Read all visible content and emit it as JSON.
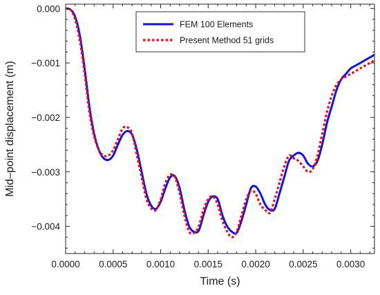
{
  "chart_data": {
    "type": "line",
    "title": "",
    "xlabel": "Time (s)",
    "ylabel": "Mid–point displacement (m)",
    "xlim": [
      0.0,
      0.00325
    ],
    "ylim": [
      -0.0045,
      8e-05
    ],
    "grid": false,
    "legend_position": "top-center",
    "x_ticks": [
      0.0,
      0.0005,
      0.001,
      0.0015,
      0.002,
      0.0025,
      0.003
    ],
    "x_tick_labels": [
      "0.0000",
      "0.0005",
      "0.0010",
      "0.0015",
      "0.0020",
      "0.0025",
      "0.0030"
    ],
    "y_ticks": [
      0.0,
      -0.001,
      -0.002,
      -0.003,
      -0.004
    ],
    "y_tick_labels": [
      "0.000",
      "−0.001",
      "−0.002",
      "−0.003",
      "−0.004"
    ],
    "series": [
      {
        "name": "FEM 100 Elements",
        "color": "#1010ee",
        "style": "solid",
        "points": [
          [
            0.0,
            0.0
          ],
          [
            5e-05,
            -2e-05
          ],
          [
            0.0001,
            -0.00015
          ],
          [
            0.00015,
            -0.0005
          ],
          [
            0.0002,
            -0.0011
          ],
          [
            0.00025,
            -0.0018
          ],
          [
            0.0003,
            -0.0023
          ],
          [
            0.00035,
            -0.0026
          ],
          [
            0.0004,
            -0.00275
          ],
          [
            0.00045,
            -0.00278
          ],
          [
            0.0005,
            -0.0027
          ],
          [
            0.00055,
            -0.0025
          ],
          [
            0.0006,
            -0.00232
          ],
          [
            0.00065,
            -0.00225
          ],
          [
            0.0007,
            -0.00232
          ],
          [
            0.00075,
            -0.0026
          ],
          [
            0.0008,
            -0.003
          ],
          [
            0.00085,
            -0.0034
          ],
          [
            0.0009,
            -0.00362
          ],
          [
            0.00095,
            -0.00368
          ],
          [
            0.001,
            -0.00355
          ],
          [
            0.00105,
            -0.0033
          ],
          [
            0.0011,
            -0.0031
          ],
          [
            0.00115,
            -0.00308
          ],
          [
            0.0012,
            -0.0033
          ],
          [
            0.00125,
            -0.0037
          ],
          [
            0.0013,
            -0.004
          ],
          [
            0.00135,
            -0.0041
          ],
          [
            0.0014,
            -0.00408
          ],
          [
            0.00145,
            -0.0038
          ],
          [
            0.0015,
            -0.00355
          ],
          [
            0.00155,
            -0.00345
          ],
          [
            0.0016,
            -0.0035
          ],
          [
            0.00165,
            -0.0038
          ],
          [
            0.0017,
            -0.004
          ],
          [
            0.00175,
            -0.0041
          ],
          [
            0.0018,
            -0.00412
          ],
          [
            0.00185,
            -0.0039
          ],
          [
            0.0019,
            -0.0036
          ],
          [
            0.00195,
            -0.0033
          ],
          [
            0.002,
            -0.00327
          ],
          [
            0.00205,
            -0.0034
          ],
          [
            0.0021,
            -0.0036
          ],
          [
            0.00215,
            -0.0037
          ],
          [
            0.0022,
            -0.00368
          ],
          [
            0.00225,
            -0.0034
          ],
          [
            0.0023,
            -0.0031
          ],
          [
            0.00235,
            -0.0028
          ],
          [
            0.0024,
            -0.0027
          ],
          [
            0.00245,
            -0.00265
          ],
          [
            0.0025,
            -0.0027
          ],
          [
            0.00255,
            -0.00285
          ],
          [
            0.0026,
            -0.0029
          ],
          [
            0.00265,
            -0.0028
          ],
          [
            0.0027,
            -0.0025
          ],
          [
            0.00275,
            -0.0021
          ],
          [
            0.0028,
            -0.0018
          ],
          [
            0.00285,
            -0.0015
          ],
          [
            0.0029,
            -0.0013
          ],
          [
            0.00295,
            -0.0012
          ],
          [
            0.003,
            -0.0011
          ],
          [
            0.00305,
            -0.00105
          ],
          [
            0.0031,
            -0.001
          ],
          [
            0.00315,
            -0.00095
          ],
          [
            0.0032,
            -0.0009
          ],
          [
            0.00325,
            -0.00085
          ]
        ]
      },
      {
        "name": "Present Method 51 grids",
        "color": "#ee1010",
        "style": "dotted",
        "points": [
          [
            0.0,
            0.0
          ],
          [
            5e-05,
            -2e-05
          ],
          [
            0.0001,
            -0.0002
          ],
          [
            0.00015,
            -0.0006
          ],
          [
            0.0002,
            -0.0012
          ],
          [
            0.00025,
            -0.0019
          ],
          [
            0.0003,
            -0.00235
          ],
          [
            0.00035,
            -0.0026
          ],
          [
            0.0004,
            -0.0027
          ],
          [
            0.00045,
            -0.0027
          ],
          [
            0.0005,
            -0.0026
          ],
          [
            0.00055,
            -0.0024
          ],
          [
            0.0006,
            -0.0022
          ],
          [
            0.00065,
            -0.00218
          ],
          [
            0.0007,
            -0.0023
          ],
          [
            0.00075,
            -0.0027
          ],
          [
            0.0008,
            -0.0031
          ],
          [
            0.00085,
            -0.0035
          ],
          [
            0.0009,
            -0.00367
          ],
          [
            0.00095,
            -0.0037
          ],
          [
            0.001,
            -0.0035
          ],
          [
            0.00105,
            -0.0032
          ],
          [
            0.0011,
            -0.00305
          ],
          [
            0.00115,
            -0.0031
          ],
          [
            0.0012,
            -0.0034
          ],
          [
            0.00125,
            -0.0038
          ],
          [
            0.0013,
            -0.0041
          ],
          [
            0.00135,
            -0.00412
          ],
          [
            0.0014,
            -0.004
          ],
          [
            0.00145,
            -0.0037
          ],
          [
            0.0015,
            -0.0035
          ],
          [
            0.00155,
            -0.00345
          ],
          [
            0.0016,
            -0.0036
          ],
          [
            0.00165,
            -0.0039
          ],
          [
            0.0017,
            -0.0041
          ],
          [
            0.00175,
            -0.0042
          ],
          [
            0.0018,
            -0.0041
          ],
          [
            0.00185,
            -0.0038
          ],
          [
            0.0019,
            -0.0035
          ],
          [
            0.00195,
            -0.00335
          ],
          [
            0.002,
            -0.0034
          ],
          [
            0.00205,
            -0.0036
          ],
          [
            0.0021,
            -0.0037
          ],
          [
            0.00215,
            -0.00375
          ],
          [
            0.0022,
            -0.0035
          ],
          [
            0.00225,
            -0.0032
          ],
          [
            0.0023,
            -0.0029
          ],
          [
            0.00235,
            -0.0027
          ],
          [
            0.0024,
            -0.00275
          ],
          [
            0.00245,
            -0.0028
          ],
          [
            0.0025,
            -0.0029
          ],
          [
            0.00255,
            -0.003
          ],
          [
            0.0026,
            -0.00295
          ],
          [
            0.00265,
            -0.0027
          ],
          [
            0.0027,
            -0.0023
          ],
          [
            0.00275,
            -0.0019
          ],
          [
            0.0028,
            -0.0016
          ],
          [
            0.00285,
            -0.0014
          ],
          [
            0.0029,
            -0.0013
          ],
          [
            0.00295,
            -0.00125
          ],
          [
            0.003,
            -0.0012
          ],
          [
            0.00305,
            -0.00115
          ],
          [
            0.0031,
            -0.0011
          ],
          [
            0.00315,
            -0.00105
          ],
          [
            0.0032,
            -0.001
          ],
          [
            0.00325,
            -0.00095
          ]
        ]
      }
    ]
  }
}
